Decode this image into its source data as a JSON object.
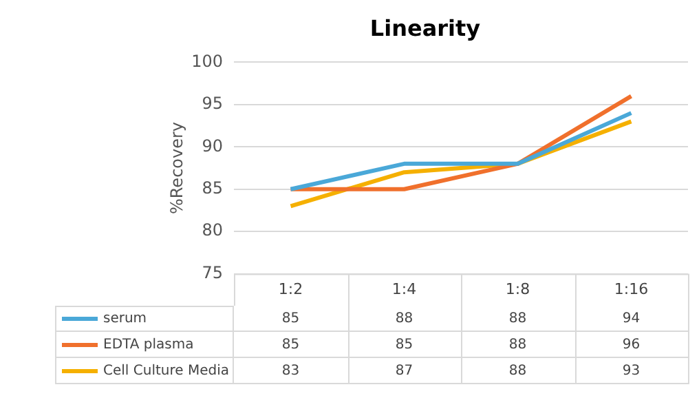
{
  "chart_data": {
    "type": "line",
    "title": "Linearity",
    "ylabel": "%Recovery",
    "categories": [
      "1:2",
      "1:4",
      "1:8",
      "1:16"
    ],
    "series": [
      {
        "name": "serum",
        "color": "#4aa8d8",
        "values": [
          85,
          88,
          88,
          94
        ]
      },
      {
        "name": "EDTA plasma",
        "color": "#f0702c",
        "values": [
          85,
          85,
          88,
          96
        ]
      },
      {
        "name": "Cell Culture Media",
        "color": "#f5b000",
        "values": [
          83,
          87,
          88,
          93
        ]
      }
    ],
    "ylim": [
      75,
      100
    ],
    "yticks": [
      75,
      80,
      85,
      90,
      95,
      100
    ],
    "grid": "y",
    "legend": "bottom",
    "data_labels": true,
    "marker": "none",
    "line_style": "solid"
  }
}
